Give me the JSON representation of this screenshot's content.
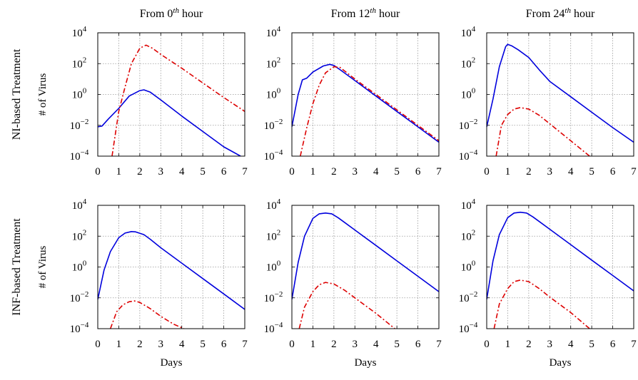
{
  "x_ticks": [
    "0",
    "1",
    "2",
    "3",
    "4",
    "5",
    "6",
    "7"
  ],
  "y_ticks": [
    {
      "base": "10",
      "exp": "4",
      "value": 4
    },
    {
      "base": "10",
      "exp": "2",
      "value": 2
    },
    {
      "base": "10",
      "exp": "0",
      "value": 0
    },
    {
      "base": "10",
      "exp": "−2",
      "value": -2
    },
    {
      "base": "10",
      "exp": "−4",
      "value": -4
    }
  ],
  "column_titles": [
    {
      "pre": "From 0",
      "sup": "th",
      "post": " hour"
    },
    {
      "pre": "From 12",
      "sup": "th",
      "post": " hour"
    },
    {
      "pre": "From 24",
      "sup": "th",
      "post": " hour"
    }
  ],
  "row_labels": [
    "NI-based Treatment",
    "INF-based Treatment"
  ],
  "ylabel": "# of Virus",
  "xlabel": "Days",
  "colors": {
    "solid": "#0000dd",
    "dashdot": "#dd0000",
    "grid": "#999999"
  },
  "chart_data": [
    {
      "type": "line",
      "row": 0,
      "col": 0,
      "xlim": [
        0,
        7
      ],
      "ylim_log10": [
        -4,
        4
      ],
      "yscale": "log",
      "grid": true,
      "series": [
        {
          "style": "solid",
          "x": [
            0,
            0.2,
            0.5,
            1,
            1.5,
            2,
            2.2,
            2.5,
            3,
            4,
            5,
            6,
            6.8
          ],
          "log10_y": [
            -2.1,
            -2.05,
            -1.6,
            -0.9,
            -0.1,
            0.25,
            0.3,
            0.15,
            -0.35,
            -1.4,
            -2.4,
            -3.4,
            -4
          ]
        },
        {
          "style": "dashdot",
          "x": [
            0.68,
            1,
            1.3,
            1.6,
            2,
            2.3,
            2.6,
            3,
            4,
            5,
            6,
            7
          ],
          "log10_y": [
            -4,
            -1.1,
            0.5,
            2.0,
            3.0,
            3.2,
            3.0,
            2.6,
            1.7,
            0.75,
            -0.2,
            -1.1
          ]
        }
      ]
    },
    {
      "type": "line",
      "row": 0,
      "col": 1,
      "xlim": [
        0,
        7
      ],
      "ylim_log10": [
        -4,
        4
      ],
      "yscale": "log",
      "grid": true,
      "series": [
        {
          "style": "solid",
          "x": [
            0,
            0.3,
            0.5,
            0.7,
            1,
            1.5,
            1.8,
            2,
            2.3,
            3,
            4,
            5,
            6,
            7
          ],
          "log10_y": [
            -2.1,
            0.0,
            0.95,
            1.05,
            1.45,
            1.85,
            1.95,
            1.88,
            1.6,
            0.9,
            -0.1,
            -1.1,
            -2.1,
            -3.1
          ]
        },
        {
          "style": "dashdot",
          "x": [
            0.4,
            0.7,
            1,
            1.3,
            1.6,
            2,
            2.3,
            3,
            4,
            5,
            6,
            7
          ],
          "log10_y": [
            -4,
            -2.2,
            -0.6,
            0.6,
            1.4,
            1.8,
            1.75,
            1.0,
            0.0,
            -1.0,
            -2.0,
            -3.0
          ]
        }
      ]
    },
    {
      "type": "line",
      "row": 0,
      "col": 2,
      "xlim": [
        0,
        7
      ],
      "ylim_log10": [
        -4,
        4
      ],
      "yscale": "log",
      "grid": true,
      "series": [
        {
          "style": "solid",
          "x": [
            0,
            0.3,
            0.6,
            0.9,
            1.0,
            1.2,
            1.5,
            2,
            2.5,
            3,
            4,
            5,
            6,
            7
          ],
          "log10_y": [
            -2.1,
            -0.3,
            1.8,
            3.1,
            3.25,
            3.15,
            2.9,
            2.4,
            1.6,
            0.85,
            -0.15,
            -1.15,
            -2.15,
            -3.1
          ]
        },
        {
          "style": "dashdot",
          "x": [
            0.45,
            0.7,
            1,
            1.3,
            1.6,
            2,
            2.5,
            3,
            4,
            4.9
          ],
          "log10_y": [
            -4,
            -2.0,
            -1.3,
            -0.95,
            -0.85,
            -0.95,
            -1.35,
            -1.9,
            -3.0,
            -4
          ]
        }
      ]
    },
    {
      "type": "line",
      "row": 1,
      "col": 0,
      "xlim": [
        0,
        7
      ],
      "ylim_log10": [
        -4,
        4
      ],
      "yscale": "log",
      "grid": true,
      "series": [
        {
          "style": "solid",
          "x": [
            0,
            0.3,
            0.6,
            1,
            1.3,
            1.6,
            1.8,
            2.2,
            2.5,
            3,
            4,
            5,
            6,
            7
          ],
          "log10_y": [
            -2.1,
            -0.2,
            1.0,
            1.9,
            2.2,
            2.3,
            2.28,
            2.1,
            1.8,
            1.25,
            0.25,
            -0.75,
            -1.75,
            -2.75
          ]
        },
        {
          "style": "dashdot",
          "x": [
            0.6,
            0.9,
            1.2,
            1.5,
            1.75,
            2,
            2.5,
            3,
            3.6,
            4.1
          ],
          "log10_y": [
            -4,
            -2.9,
            -2.45,
            -2.25,
            -2.2,
            -2.3,
            -2.7,
            -3.2,
            -3.7,
            -4
          ]
        }
      ]
    },
    {
      "type": "line",
      "row": 1,
      "col": 1,
      "xlim": [
        0,
        7
      ],
      "ylim_log10": [
        -4,
        4
      ],
      "yscale": "log",
      "grid": true,
      "series": [
        {
          "style": "solid",
          "x": [
            0,
            0.3,
            0.6,
            1,
            1.3,
            1.6,
            1.9,
            2.2,
            2.5,
            3,
            4,
            5,
            6,
            7
          ],
          "log10_y": [
            -2.1,
            0.3,
            2.0,
            3.15,
            3.45,
            3.5,
            3.45,
            3.2,
            2.9,
            2.4,
            1.4,
            0.4,
            -0.6,
            -1.6
          ]
        },
        {
          "style": "dashdot",
          "x": [
            0.35,
            0.6,
            1,
            1.3,
            1.6,
            2,
            2.5,
            3,
            4,
            4.9
          ],
          "log10_y": [
            -4,
            -2.6,
            -1.6,
            -1.15,
            -1.0,
            -1.1,
            -1.5,
            -2.0,
            -3.0,
            -4
          ]
        }
      ]
    },
    {
      "type": "line",
      "row": 1,
      "col": 2,
      "xlim": [
        0,
        7
      ],
      "ylim_log10": [
        -4,
        4
      ],
      "yscale": "log",
      "grid": true,
      "series": [
        {
          "style": "solid",
          "x": [
            0,
            0.3,
            0.6,
            1,
            1.3,
            1.6,
            1.9,
            2.2,
            2.5,
            3,
            4,
            5,
            6,
            7
          ],
          "log10_y": [
            -2.1,
            0.4,
            2.1,
            3.2,
            3.5,
            3.55,
            3.5,
            3.25,
            2.95,
            2.45,
            1.45,
            0.45,
            -0.55,
            -1.55
          ]
        },
        {
          "style": "dashdot",
          "x": [
            0.35,
            0.6,
            1,
            1.3,
            1.6,
            2,
            2.5,
            3,
            4,
            4.9
          ],
          "log10_y": [
            -4,
            -2.4,
            -1.4,
            -0.95,
            -0.85,
            -0.95,
            -1.4,
            -1.95,
            -2.95,
            -4
          ]
        }
      ]
    }
  ]
}
